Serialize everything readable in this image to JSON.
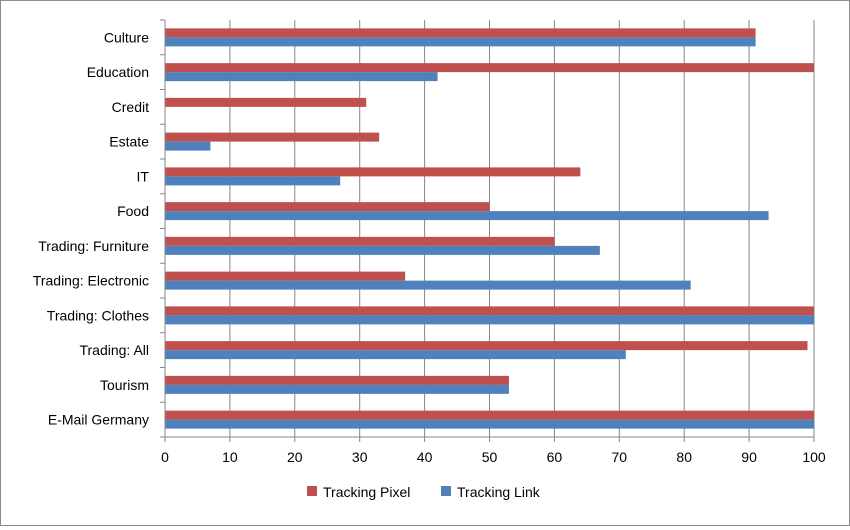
{
  "chart_data": {
    "type": "bar",
    "orientation": "horizontal",
    "categories": [
      "Culture",
      "Education",
      "Credit",
      "Estate",
      "IT",
      "Food",
      "Trading: Furniture",
      "Trading: Electronic",
      "Trading: Clothes",
      "Trading: All",
      "Tourism",
      "E-Mail Germany"
    ],
    "series": [
      {
        "name": "Tracking Pixel",
        "color": "#c0504d",
        "values": [
          91,
          100,
          31,
          33,
          64,
          50,
          60,
          37,
          100,
          99,
          53,
          100
        ]
      },
      {
        "name": "Tracking Link",
        "color": "#4f81bd",
        "values": [
          91,
          42,
          0,
          7,
          27,
          93,
          67,
          81,
          100,
          71,
          53,
          100
        ]
      }
    ],
    "xlim": [
      0,
      100
    ],
    "x_ticks": [
      0,
      10,
      20,
      30,
      40,
      50,
      60,
      70,
      80,
      90,
      100
    ],
    "grid": "vertical",
    "legend_position": "bottom",
    "title": "",
    "xlabel": "",
    "ylabel": ""
  }
}
